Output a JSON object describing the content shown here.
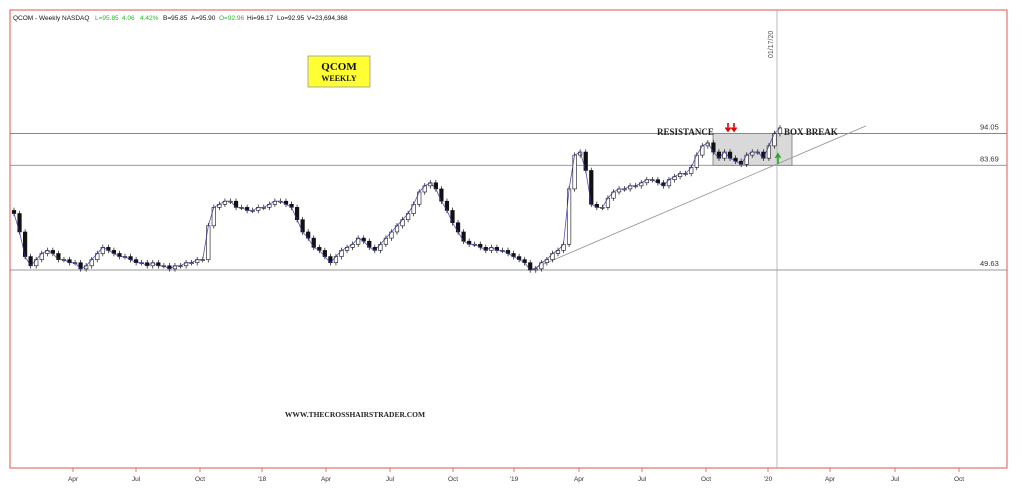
{
  "header": {
    "title": "QCOM - Weekly  NASDAQ",
    "last": "L=95.85",
    "change": "4.06",
    "change_pct": "4.42%",
    "bid": "B=95.85",
    "ask": "A=95.90",
    "open": "O=92.96",
    "high": "Hi=96.17",
    "low": "Lo=92.95",
    "volume": "V=23,694,368"
  },
  "label_box": {
    "line1": "QCOM",
    "line2": "WEEKLY"
  },
  "annotations": {
    "resistance": "RESISTANCE",
    "box_break": "BOX BREAK",
    "date_marker": "01/17/20",
    "watermark": "WWW.THECROSSHAIRSTRADER.COM"
  },
  "colors": {
    "up_change": "#22bb22",
    "label_bg": "#ffff33",
    "arrow_down": "#dd0000",
    "arrow_up": "#22aa22",
    "candle": "#111111",
    "line": "#3333aa",
    "border": "#dd4444",
    "box_fill": "#d9d9d9"
  },
  "chart_data": {
    "type": "candlestick",
    "x_tick_labels": [
      "Apr",
      "Jul",
      "Oct",
      "'18",
      "Apr",
      "Jul",
      "Oct",
      "'19",
      "Apr",
      "Jul",
      "Oct",
      "'20",
      "Apr",
      "Jul",
      "Oct"
    ],
    "y_ticks": [],
    "price_levels": [
      {
        "label": "94.05",
        "value": 94.05
      },
      {
        "label": "83.69",
        "value": 83.69
      },
      {
        "label": "49.63",
        "value": 49.63
      }
    ],
    "ylim": [
      0,
      120
    ],
    "box": {
      "x_start": "2019-11",
      "x_end": "2020-02",
      "low": 83.69,
      "high": 94.05
    },
    "trendline": {
      "from": [
        "2019-01",
        49.63
      ],
      "to": [
        "2020-06",
        96.5
      ]
    },
    "close_series": [
      68,
      62,
      54,
      51,
      53,
      55,
      56,
      55,
      53,
      53,
      52,
      52,
      50,
      51,
      53,
      55,
      57,
      56,
      55,
      54,
      54,
      53,
      52,
      52,
      51,
      52,
      51,
      51,
      50,
      51,
      51,
      52,
      52,
      53,
      53,
      64,
      70,
      71,
      72,
      72,
      70,
      70,
      69,
      69,
      70,
      70,
      71,
      72,
      72,
      71,
      70,
      66,
      62,
      60,
      57,
      56,
      54,
      52,
      54,
      56,
      57,
      58,
      60,
      59,
      57,
      56,
      58,
      60,
      62,
      64,
      66,
      68,
      71,
      75,
      77,
      78,
      76,
      72,
      69,
      65,
      62,
      59,
      58,
      58,
      57,
      56,
      57,
      56,
      56,
      55,
      54,
      53,
      52,
      49.63,
      50,
      52,
      53,
      55,
      56,
      58,
      76,
      87,
      88,
      82,
      71,
      70,
      70,
      73,
      75,
      76,
      76,
      77,
      77,
      78,
      79,
      79,
      78,
      77,
      79,
      80,
      81,
      81,
      83,
      87,
      90,
      91,
      88,
      86,
      88,
      86,
      85,
      84,
      87,
      88,
      88,
      86,
      90,
      94,
      95.85
    ]
  }
}
